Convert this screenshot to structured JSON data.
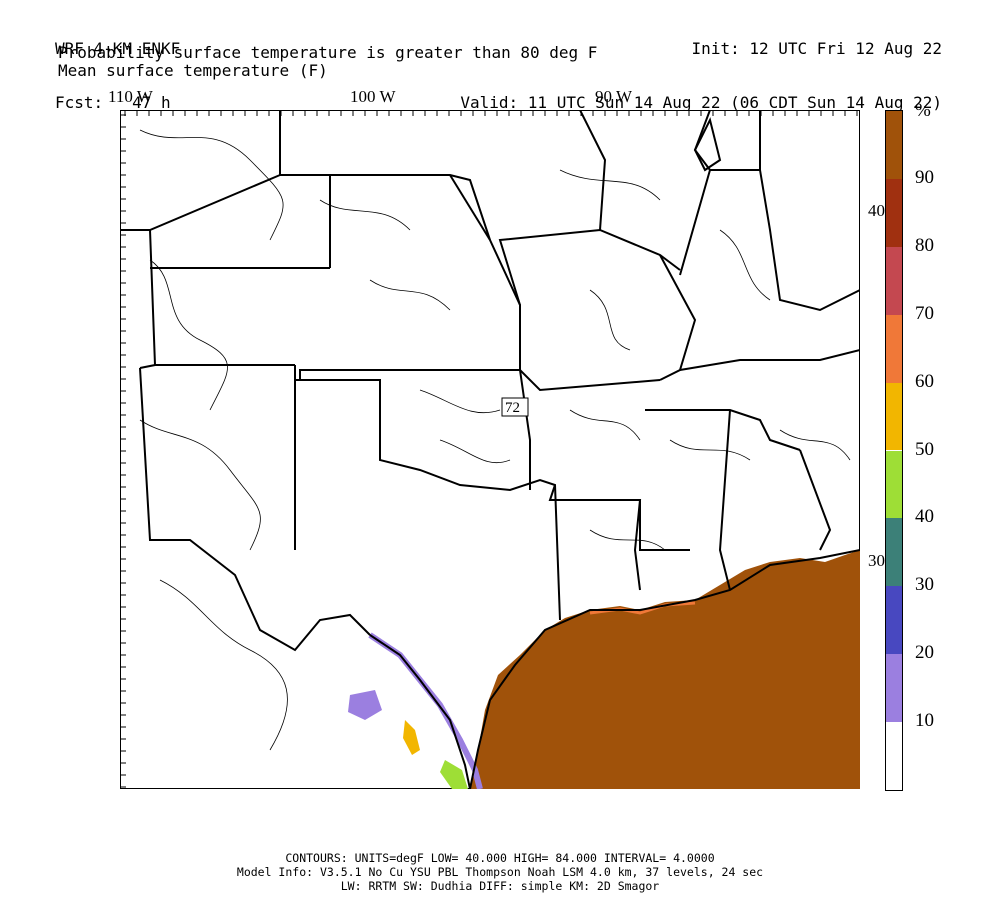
{
  "header": {
    "model": "WRF 4-KM ENKF",
    "fcst": "Fcst:   47 h",
    "init": "Init: 12 UTC Fri 12 Aug 22",
    "valid": "Valid: 11 UTC Sun 14 Aug 22 (06 CDT Sun 14 Aug 22)",
    "field1": "Probability surface temperature is greater than 80 deg F",
    "field2": "Mean surface temperature (F)"
  },
  "axes": {
    "lon_labels": [
      "110 W",
      "100 W",
      "90 W"
    ],
    "lat_labels": [
      "40 N",
      "30 N"
    ]
  },
  "map": {
    "contour_label": "72",
    "colors": {
      "land": "#ffffff",
      "high_prob": "#a0520a",
      "lines": "#000000"
    }
  },
  "legend": {
    "unit": "%",
    "levels": [
      "10",
      "20",
      "30",
      "40",
      "50",
      "60",
      "70",
      "80",
      "90"
    ],
    "colors": [
      "#ffffff",
      "#9b7fe0",
      "#4848c0",
      "#3c8078",
      "#9ede36",
      "#f2b600",
      "#f07838",
      "#c44850",
      "#a03010",
      "#a0520a"
    ]
  },
  "footer": {
    "line1": "CONTOURS:  UNITS=degF  LOW=  40.000      HIGH=  84.000      INTERVAL=   4.0000",
    "line2": "Model Info: V3.5.1    No Cu    YSU PBL  Thompson      Noah LSM  4.0 km,  37 levels,   24 sec",
    "line3": "LW: RRTM SW: Dudhia  DIFF: simple KM: 2D Smagor"
  }
}
